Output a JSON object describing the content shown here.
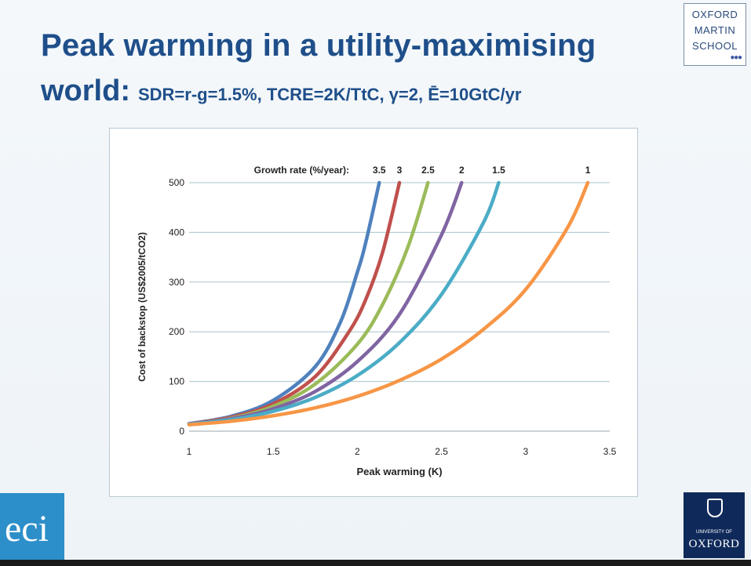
{
  "slide": {
    "title_line1": "Peak warming in a utility-maximising",
    "title_line2_big": "world:",
    "title_line2_params": "SDR=r-g=1.5%, TCRE=2K/TtC, γ=2, Ē=10GtC/yr"
  },
  "logos": {
    "oxford_martin": [
      "OXFORD",
      "MARTIN",
      "SCHOOL"
    ],
    "eci": "eci",
    "oxford_univ_small": "UNIVERSITY OF",
    "oxford_univ": "OXFORD"
  },
  "chart_data": {
    "type": "line",
    "title": "",
    "xlabel": "Peak warming (K)",
    "ylabel": "Cost of backstop (US$2005/tCO2)",
    "xlim": [
      1,
      3.5
    ],
    "ylim": [
      0,
      500
    ],
    "xticks": [
      "1",
      "1.5",
      "2",
      "2.5",
      "3",
      "3.5"
    ],
    "yticks": [
      "0",
      "100",
      "200",
      "300",
      "400",
      "500"
    ],
    "grid": "horizontal",
    "legend_title": "Growth rate (%/year):",
    "series": [
      {
        "name": "3.5",
        "color": "#4f81bd",
        "x": [
          1.0,
          1.25,
          1.5,
          1.75,
          1.9,
          2.0,
          2.05,
          2.13
        ],
        "y": [
          15,
          30,
          62,
          130,
          220,
          320,
          380,
          500
        ]
      },
      {
        "name": "3",
        "color": "#c0504d",
        "x": [
          1.0,
          1.25,
          1.5,
          1.75,
          1.95,
          2.05,
          2.15,
          2.25
        ],
        "y": [
          15,
          28,
          55,
          110,
          200,
          265,
          360,
          500
        ]
      },
      {
        "name": "2.5",
        "color": "#9bbb59",
        "x": [
          1.0,
          1.25,
          1.5,
          1.75,
          2.0,
          2.15,
          2.3,
          2.42
        ],
        "y": [
          15,
          26,
          50,
          95,
          175,
          255,
          370,
          500
        ]
      },
      {
        "name": "2",
        "color": "#8064a2",
        "x": [
          1.0,
          1.25,
          1.5,
          1.75,
          2.0,
          2.25,
          2.5,
          2.62
        ],
        "y": [
          15,
          25,
          45,
          80,
          140,
          235,
          395,
          500
        ]
      },
      {
        "name": "1.5",
        "color": "#4bacc6",
        "x": [
          1.0,
          1.25,
          1.5,
          1.75,
          2.0,
          2.25,
          2.5,
          2.75,
          2.84
        ],
        "y": [
          14,
          23,
          40,
          68,
          112,
          178,
          275,
          420,
          500
        ]
      },
      {
        "name": "1",
        "color": "#f79646",
        "x": [
          1.0,
          1.25,
          1.5,
          1.75,
          2.0,
          2.25,
          2.5,
          2.75,
          3.0,
          3.25,
          3.37
        ],
        "y": [
          13,
          20,
          31,
          47,
          70,
          102,
          145,
          205,
          285,
          410,
          500
        ]
      }
    ]
  }
}
